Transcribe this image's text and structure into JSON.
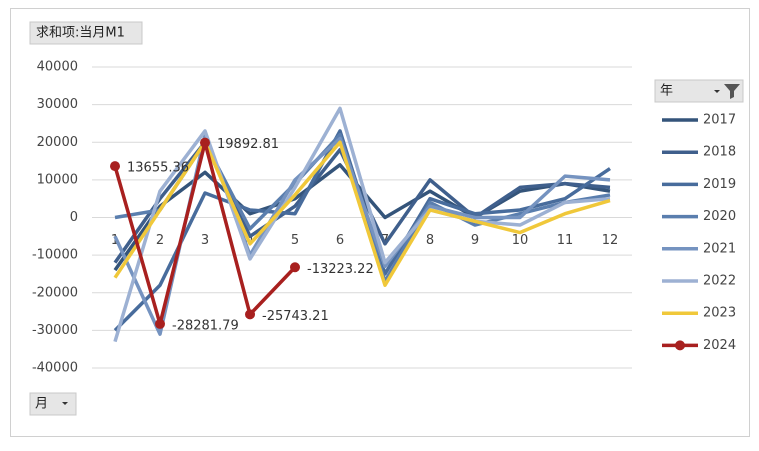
{
  "chart_data": {
    "type": "line",
    "value_field": "求和项:当月M1",
    "legend_title": "年",
    "axis_field": "月",
    "categories": [
      "1",
      "2",
      "3",
      "4",
      "5",
      "6",
      "7",
      "8",
      "9",
      "10",
      "11",
      "12"
    ],
    "ylim": [
      -40000,
      40000
    ],
    "yticks": [
      -40000,
      -30000,
      -20000,
      -10000,
      0,
      10000,
      20000,
      30000,
      40000
    ],
    "grid": true,
    "legend": "right",
    "series": [
      {
        "name": "2017",
        "color": "#34547a",
        "values": [
          -14000,
          3000,
          12000,
          1000,
          5000,
          14000,
          0,
          7000,
          0,
          7000,
          9000,
          7000
        ]
      },
      {
        "name": "2018",
        "color": "#3f5f8c",
        "values": [
          -12000,
          5000,
          20000,
          -5000,
          3000,
          18000,
          -7000,
          10000,
          0,
          8000,
          9000,
          8000
        ]
      },
      {
        "name": "2019",
        "color": "#486c9c",
        "values": [
          -30000,
          -18000,
          6500,
          2000,
          1000,
          23000,
          -15000,
          5000,
          1000,
          2000,
          5000,
          13000
        ]
      },
      {
        "name": "2020",
        "color": "#5a7eae",
        "values": [
          0,
          2000,
          20000,
          -3000,
          9000,
          22000,
          -17000,
          4000,
          -2000,
          1000,
          4000,
          6000
        ]
      },
      {
        "name": "2021",
        "color": "#7593c0",
        "values": [
          -5000,
          -31000,
          22000,
          -10000,
          10000,
          21000,
          -13000,
          3000,
          0,
          0,
          11000,
          10000
        ]
      },
      {
        "name": "2022",
        "color": "#9db1d3",
        "values": [
          -33000,
          7000,
          23000,
          -11000,
          8000,
          29000,
          -12000,
          2000,
          -1000,
          -2000,
          4000,
          5000
        ]
      },
      {
        "name": "2023",
        "color": "#f0c83a",
        "values": [
          -16000,
          2000,
          20000,
          -7000,
          6000,
          20000,
          -18000,
          2000,
          -1000,
          -4000,
          1000,
          4500
        ]
      },
      {
        "name": "2024",
        "color": "#a8201f",
        "markers": true,
        "data_labels": true,
        "values": [
          13655.36,
          -28281.79,
          19892.81,
          -25743.21,
          -13223.22,
          null,
          null,
          null,
          null,
          null,
          null,
          null
        ]
      }
    ]
  }
}
